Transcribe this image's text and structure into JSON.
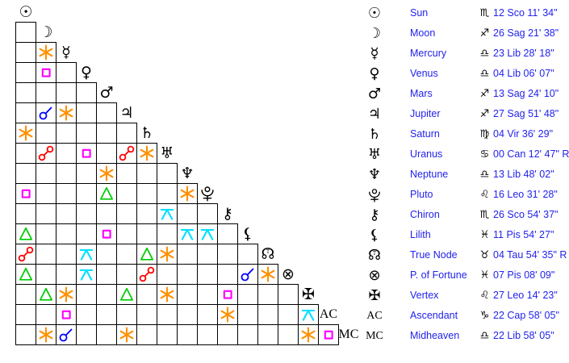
{
  "colors": {
    "background": "#ffffff",
    "grid_line": "#000000",
    "symbol_black": "#000000",
    "table_text_blue": "#2222ee",
    "aspects": {
      "conjunction": "#0000ff",
      "sextile": "#ff9000",
      "square": "#ff00ff",
      "trine": "#00cc00",
      "opposition": "#ff0000",
      "quincunx": "#00e0ff"
    }
  },
  "planets": [
    {
      "id": "sun",
      "name": "Sun",
      "symbol": "☉",
      "sign": "♏",
      "position": "12 Sco 11' 34\""
    },
    {
      "id": "moon",
      "name": "Moon",
      "symbol": "☽",
      "sign": "♐",
      "position": "26 Sag 21' 38\""
    },
    {
      "id": "mercury",
      "name": "Mercury",
      "symbol": "☿",
      "sign": "♎",
      "position": "23 Lib 28' 18\""
    },
    {
      "id": "venus",
      "name": "Venus",
      "symbol": "♀",
      "sign": "♎",
      "position": "04 Lib 06' 07\""
    },
    {
      "id": "mars",
      "name": "Mars",
      "symbol": "♂",
      "sign": "♐",
      "position": "13 Sag 24' 10\""
    },
    {
      "id": "jupiter",
      "name": "Jupiter",
      "symbol": "♃",
      "sign": "♐",
      "position": "27 Sag 51' 48\""
    },
    {
      "id": "saturn",
      "name": "Saturn",
      "symbol": "♄",
      "sign": "♍",
      "position": "04 Vir 36' 29\""
    },
    {
      "id": "uranus",
      "name": "Uranus",
      "symbol": "♅",
      "sign": "♋",
      "position": "00 Can 12' 47\" R"
    },
    {
      "id": "neptune",
      "name": "Neptune",
      "symbol": "♆",
      "sign": "♎",
      "position": "13 Lib 48' 02\""
    },
    {
      "id": "pluto",
      "name": "Pluto",
      "symbol": "svg:pluto",
      "sign": "♌",
      "position": "16 Leo 31' 28\""
    },
    {
      "id": "chiron",
      "name": "Chiron",
      "symbol": "⚷",
      "sign": "♏",
      "position": "26 Sco 54' 37\""
    },
    {
      "id": "lilith",
      "name": "Lilith",
      "symbol": "⚸",
      "sign": "♓",
      "position": "11 Pis 54' 27\""
    },
    {
      "id": "true-node",
      "name": "True Node",
      "symbol": "☊",
      "true_marker": "T",
      "sign": "♉",
      "position": "04 Tau 54' 35\" R"
    },
    {
      "id": "fortune",
      "name": "P. of Fortune",
      "symbol": "⊗",
      "sign": "♓",
      "position": "07 Pis 08' 09\""
    },
    {
      "id": "vertex",
      "name": "Vertex",
      "symbol": "✠",
      "sign": "♌",
      "position": "27 Leo 14' 23\""
    },
    {
      "id": "ascendant",
      "name": "Ascendant",
      "symbol": "AC",
      "serif": true,
      "sign": "♑",
      "position": "22 Cap 58' 05\""
    },
    {
      "id": "midheaven",
      "name": "Midheaven",
      "symbol": "MC",
      "serif": true,
      "sign": "♎",
      "position": "22 Lib 58' 05\""
    }
  ],
  "grid": {
    "aspects": [
      {
        "row": 2,
        "col": 1,
        "type": "sextile"
      },
      {
        "row": 3,
        "col": 1,
        "type": "square"
      },
      {
        "row": 5,
        "col": 1,
        "type": "conjunction"
      },
      {
        "row": 5,
        "col": 2,
        "type": "sextile"
      },
      {
        "row": 6,
        "col": 0,
        "type": "sextile"
      },
      {
        "row": 7,
        "col": 1,
        "type": "opposition"
      },
      {
        "row": 7,
        "col": 3,
        "type": "square"
      },
      {
        "row": 7,
        "col": 5,
        "type": "opposition"
      },
      {
        "row": 7,
        "col": 6,
        "type": "sextile"
      },
      {
        "row": 8,
        "col": 4,
        "type": "sextile"
      },
      {
        "row": 9,
        "col": 0,
        "type": "square"
      },
      {
        "row": 9,
        "col": 4,
        "type": "trine"
      },
      {
        "row": 9,
        "col": 8,
        "type": "sextile"
      },
      {
        "row": 10,
        "col": 7,
        "type": "quincunx"
      },
      {
        "row": 11,
        "col": 0,
        "type": "trine"
      },
      {
        "row": 11,
        "col": 4,
        "type": "square"
      },
      {
        "row": 11,
        "col": 8,
        "type": "quincunx"
      },
      {
        "row": 11,
        "col": 9,
        "type": "quincunx"
      },
      {
        "row": 12,
        "col": 0,
        "type": "opposition"
      },
      {
        "row": 12,
        "col": 3,
        "type": "quincunx"
      },
      {
        "row": 12,
        "col": 6,
        "type": "trine"
      },
      {
        "row": 12,
        "col": 7,
        "type": "sextile"
      },
      {
        "row": 13,
        "col": 0,
        "type": "trine"
      },
      {
        "row": 13,
        "col": 3,
        "type": "quincunx"
      },
      {
        "row": 13,
        "col": 6,
        "type": "opposition"
      },
      {
        "row": 13,
        "col": 11,
        "type": "conjunction"
      },
      {
        "row": 13,
        "col": 12,
        "type": "sextile"
      },
      {
        "row": 14,
        "col": 1,
        "type": "trine"
      },
      {
        "row": 14,
        "col": 2,
        "type": "sextile"
      },
      {
        "row": 14,
        "col": 5,
        "type": "trine"
      },
      {
        "row": 14,
        "col": 7,
        "type": "sextile"
      },
      {
        "row": 14,
        "col": 10,
        "type": "square"
      },
      {
        "row": 15,
        "col": 2,
        "type": "square"
      },
      {
        "row": 15,
        "col": 10,
        "type": "sextile"
      },
      {
        "row": 15,
        "col": 14,
        "type": "quincunx"
      },
      {
        "row": 16,
        "col": 1,
        "type": "sextile"
      },
      {
        "row": 16,
        "col": 2,
        "type": "conjunction"
      },
      {
        "row": 16,
        "col": 5,
        "type": "sextile"
      },
      {
        "row": 16,
        "col": 14,
        "type": "sextile"
      },
      {
        "row": 16,
        "col": 15,
        "type": "square"
      }
    ]
  }
}
